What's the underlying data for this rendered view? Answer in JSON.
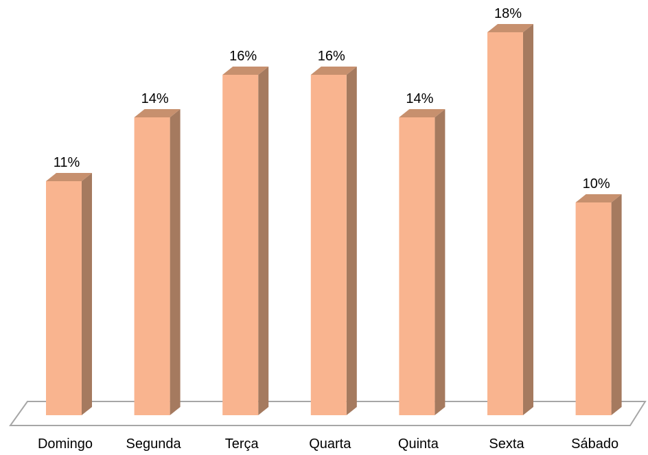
{
  "chart_data": {
    "type": "bar",
    "categories": [
      "Domingo",
      "Segunda",
      "Terça",
      "Quarta",
      "Quinta",
      "Sexta",
      "Sábado"
    ],
    "values": [
      11,
      14,
      16,
      16,
      14,
      18,
      10
    ],
    "data_labels": [
      "11%",
      "14%",
      "16%",
      "16%",
      "14%",
      "18%",
      "10%"
    ],
    "title": "",
    "xlabel": "",
    "ylabel": "",
    "ylim": [
      0,
      18
    ],
    "grid": false,
    "style": "3d-column",
    "colors": {
      "bar_front": "#F9B48F",
      "bar_side": "#A57A5F",
      "bar_top": "#C7906E",
      "floor_stroke": "#A6A6A6"
    }
  }
}
